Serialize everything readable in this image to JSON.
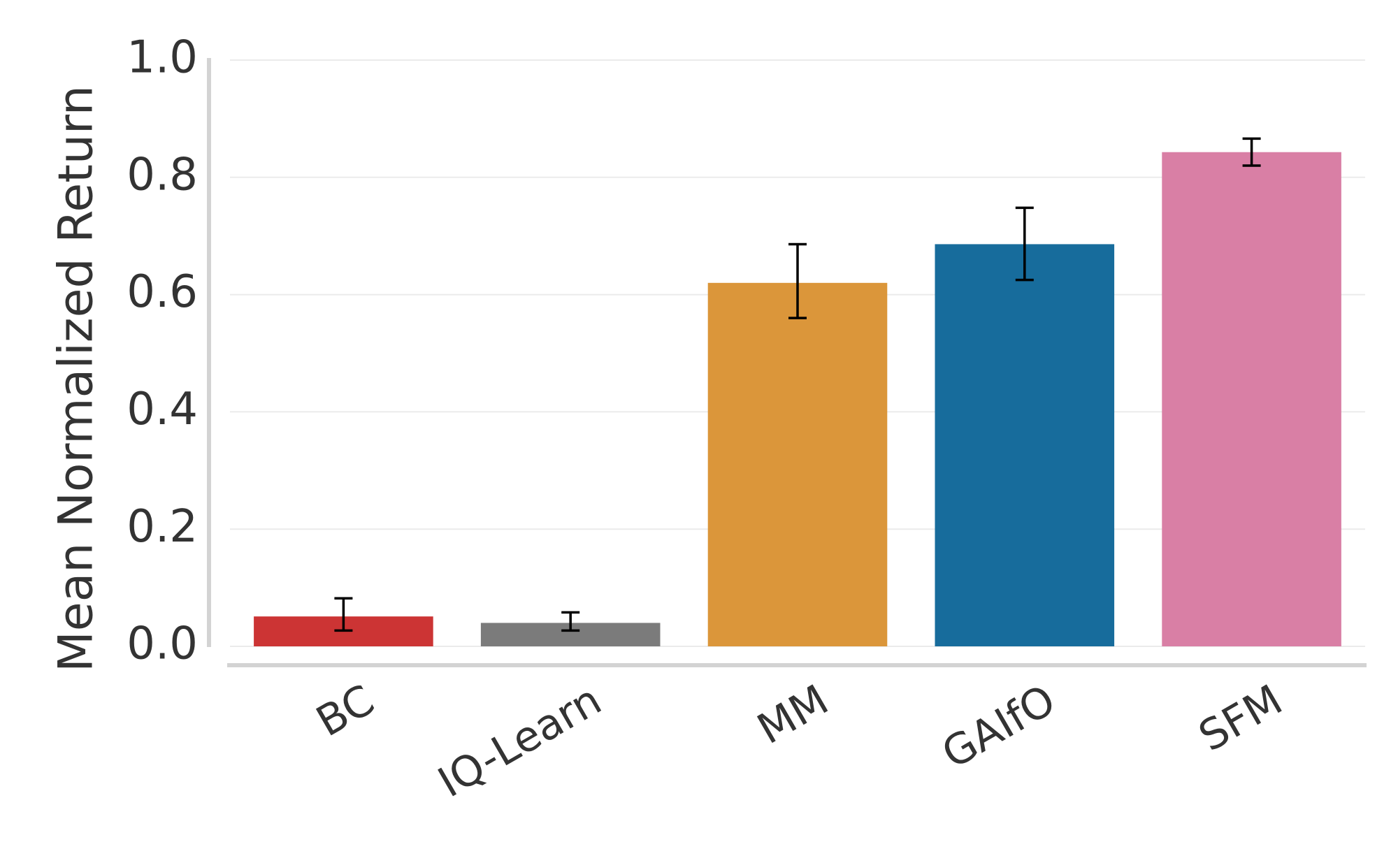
{
  "chart_data": {
    "type": "bar",
    "title": "",
    "xlabel": "",
    "ylabel": "Mean Normalized Return",
    "ylim": [
      0,
      1.0
    ],
    "yticks": [
      "0.0",
      "0.2",
      "0.4",
      "0.6",
      "0.8",
      "1.0"
    ],
    "ytick_values": [
      0,
      0.2,
      0.4,
      0.6,
      0.8,
      1.0
    ],
    "grid": "horizontal",
    "legend": "none",
    "categories": [
      "BC",
      "IQ-Learn",
      "MM",
      "GAIfO",
      "SFM"
    ],
    "values": [
      0.051,
      0.04,
      0.62,
      0.686,
      0.843
    ],
    "error_low": [
      0.027,
      0.027,
      0.56,
      0.625,
      0.82
    ],
    "error_high": [
      0.082,
      0.058,
      0.686,
      0.748,
      0.866
    ],
    "colors": [
      "#cc3434",
      "#7b7b7b",
      "#db963a",
      "#176c9c",
      "#d97fa5"
    ],
    "error_color": "#000000"
  }
}
